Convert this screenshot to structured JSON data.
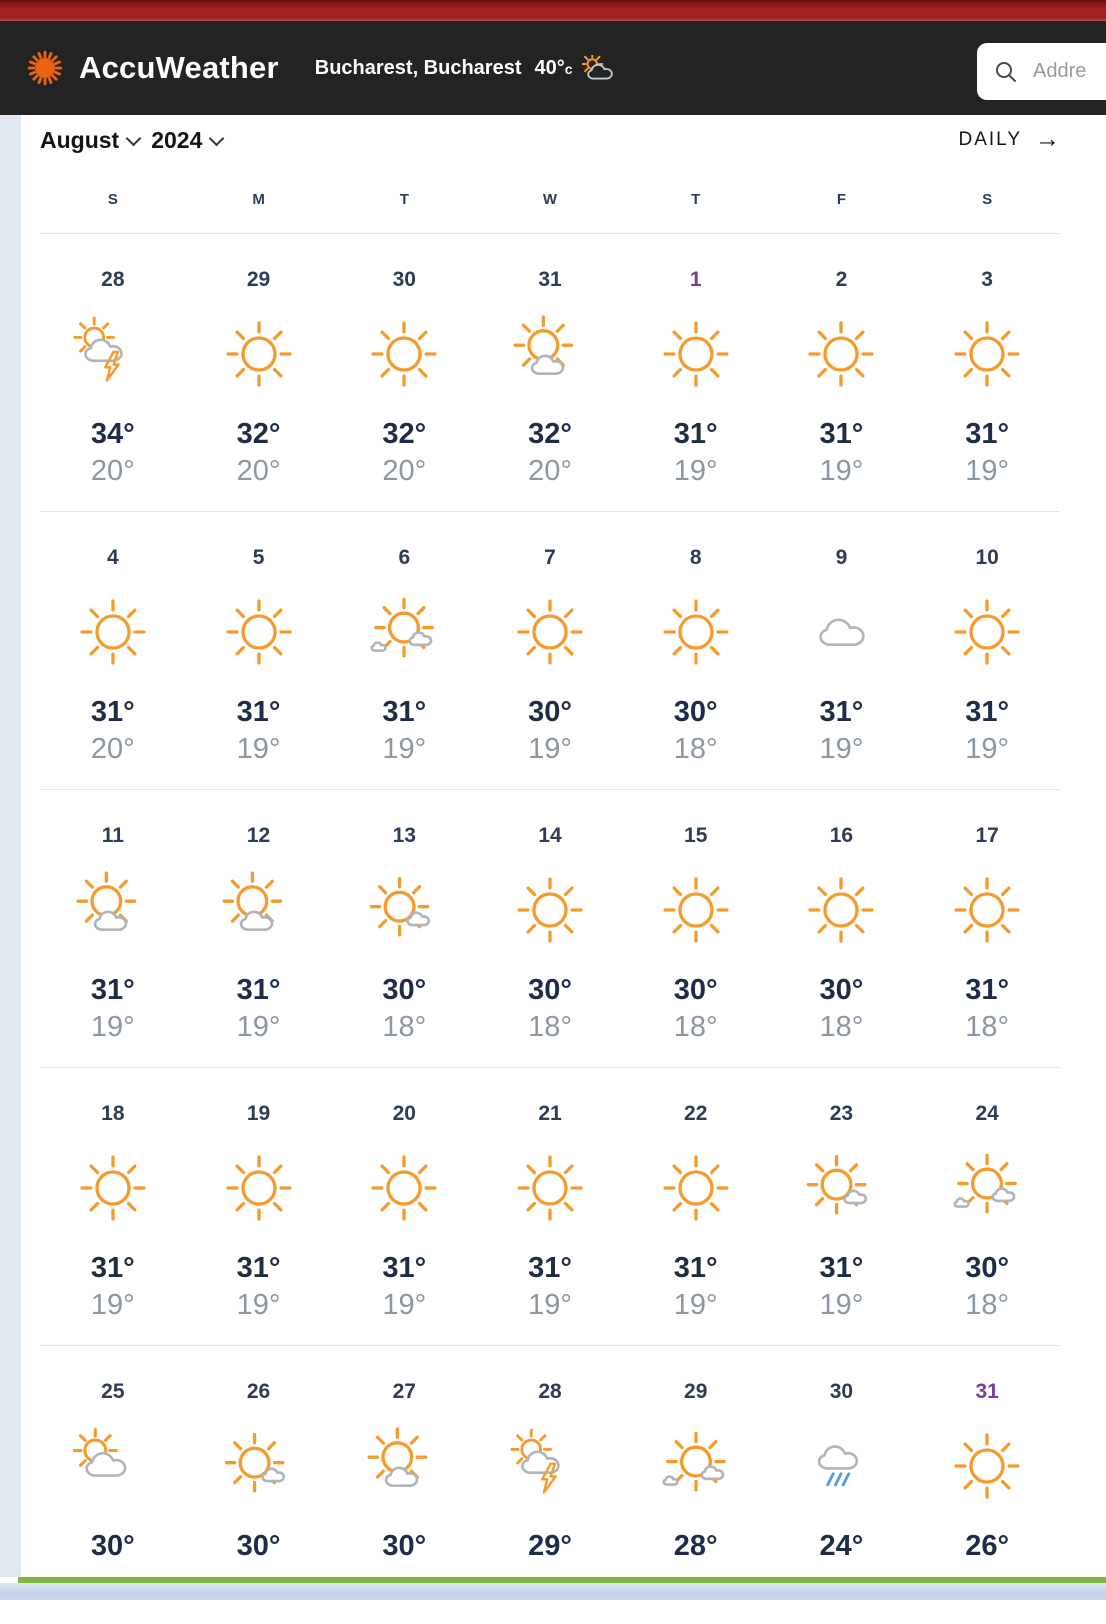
{
  "header": {
    "brand": "AccuWeather",
    "location": "Bucharest, Bucharest",
    "temp": "40°",
    "temp_unit": "c",
    "search_placeholder": "Addre"
  },
  "toolbar": {
    "month": "August",
    "year": "2024",
    "daily_label": "DAILY",
    "daily_arrow": "→"
  },
  "calendar": {
    "weekdays": [
      "S",
      "M",
      "T",
      "W",
      "T",
      "F",
      "S"
    ],
    "weeks": [
      [
        {
          "date": "28",
          "icon": "thunderstorm",
          "high": "34°",
          "low": "20°"
        },
        {
          "date": "29",
          "icon": "sunny",
          "high": "32°",
          "low": "20°"
        },
        {
          "date": "30",
          "icon": "sunny",
          "high": "32°",
          "low": "20°"
        },
        {
          "date": "31",
          "icon": "partly-sunny",
          "high": "32°",
          "low": "20°"
        },
        {
          "date": "1",
          "icon": "sunny",
          "high": "31°",
          "low": "19°",
          "visited": true
        },
        {
          "date": "2",
          "icon": "sunny",
          "high": "31°",
          "low": "19°"
        },
        {
          "date": "3",
          "icon": "sunny",
          "high": "31°",
          "low": "19°"
        }
      ],
      [
        {
          "date": "4",
          "icon": "sunny",
          "high": "31°",
          "low": "20°"
        },
        {
          "date": "5",
          "icon": "sunny",
          "high": "31°",
          "low": "19°"
        },
        {
          "date": "6",
          "icon": "intermittent-clouds",
          "high": "31°",
          "low": "19°"
        },
        {
          "date": "7",
          "icon": "sunny",
          "high": "30°",
          "low": "19°"
        },
        {
          "date": "8",
          "icon": "sunny",
          "high": "30°",
          "low": "18°"
        },
        {
          "date": "9",
          "icon": "cloudy",
          "high": "31°",
          "low": "19°"
        },
        {
          "date": "10",
          "icon": "sunny",
          "high": "31°",
          "low": "19°"
        }
      ],
      [
        {
          "date": "11",
          "icon": "partly-sunny",
          "high": "31°",
          "low": "19°"
        },
        {
          "date": "12",
          "icon": "partly-sunny",
          "high": "31°",
          "low": "19°"
        },
        {
          "date": "13",
          "icon": "mostly-sunny",
          "high": "30°",
          "low": "18°"
        },
        {
          "date": "14",
          "icon": "sunny",
          "high": "30°",
          "low": "18°"
        },
        {
          "date": "15",
          "icon": "sunny",
          "high": "30°",
          "low": "18°"
        },
        {
          "date": "16",
          "icon": "sunny",
          "high": "30°",
          "low": "18°"
        },
        {
          "date": "17",
          "icon": "sunny",
          "high": "31°",
          "low": "18°"
        }
      ],
      [
        {
          "date": "18",
          "icon": "sunny",
          "high": "31°",
          "low": "19°"
        },
        {
          "date": "19",
          "icon": "sunny",
          "high": "31°",
          "low": "19°"
        },
        {
          "date": "20",
          "icon": "sunny",
          "high": "31°",
          "low": "19°"
        },
        {
          "date": "21",
          "icon": "sunny",
          "high": "31°",
          "low": "19°"
        },
        {
          "date": "22",
          "icon": "sunny",
          "high": "31°",
          "low": "19°"
        },
        {
          "date": "23",
          "icon": "mostly-sunny",
          "high": "31°",
          "low": "19°"
        },
        {
          "date": "24",
          "icon": "intermittent-clouds",
          "high": "30°",
          "low": "18°"
        }
      ],
      [
        {
          "date": "25",
          "icon": "mostly-cloudy",
          "high": "30°",
          "low": ""
        },
        {
          "date": "26",
          "icon": "mostly-sunny",
          "high": "30°",
          "low": ""
        },
        {
          "date": "27",
          "icon": "partly-sunny",
          "high": "30°",
          "low": ""
        },
        {
          "date": "28",
          "icon": "thunderstorm",
          "high": "29°",
          "low": ""
        },
        {
          "date": "29",
          "icon": "intermittent-clouds",
          "high": "28°",
          "low": ""
        },
        {
          "date": "30",
          "icon": "rain",
          "high": "24°",
          "low": ""
        },
        {
          "date": "31",
          "icon": "sunny",
          "high": "26°",
          "low": "",
          "visited": true
        }
      ]
    ]
  },
  "colors": {
    "accent_orange": "#f59b2d",
    "logo_orange": "#ea6312",
    "cloud_gray": "#b0b5bb",
    "rain_blue": "#5b9bd5",
    "visited_purple": "#7a3e98",
    "green_bar": "#82b541",
    "top_red": "#a32021"
  }
}
